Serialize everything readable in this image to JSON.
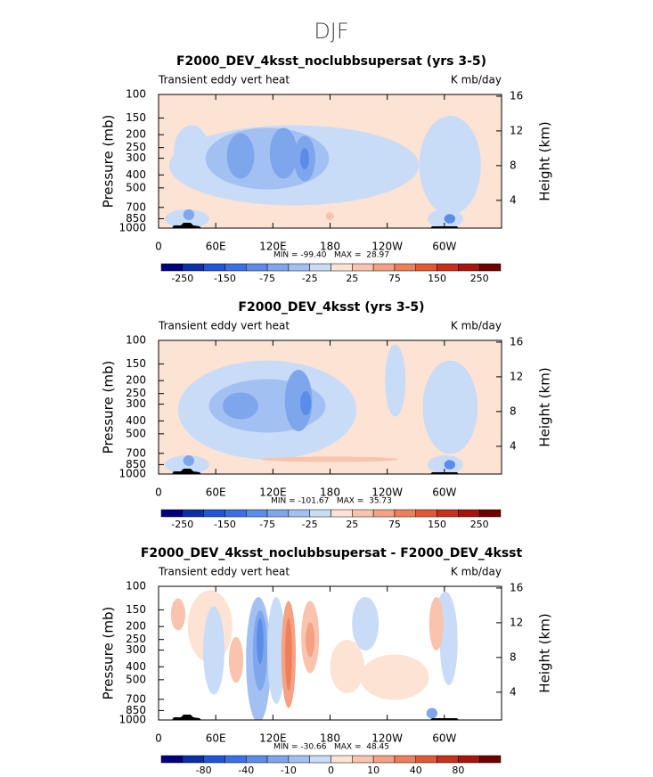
{
  "title": "DJF",
  "chart_data": [
    {
      "type": "contour",
      "title": "F2000_DEV_4ksst_noclubbsupersat (yrs 3-5)",
      "left_label": "Transient eddy vert heat",
      "right_label": "K mb/day",
      "y_label": "Pressure (mb)",
      "y2_label": "Height (km)",
      "xlim": [
        0,
        360
      ],
      "xticks": [
        0,
        {
          "value": 60,
          "label": "60E"
        },
        {
          "value": 120,
          "label": "120E"
        },
        180,
        {
          "value": 240,
          "label": "120W"
        },
        {
          "value": 300,
          "label": "60W"
        }
      ],
      "ylim": [
        1000,
        100
      ],
      "log_y": true,
      "yticks": [
        100,
        150,
        200,
        250,
        300,
        400,
        500,
        700,
        850,
        1000
      ],
      "y2lim": [
        0.8,
        16.2
      ],
      "y2ticks": [
        4,
        8,
        12,
        16
      ],
      "stats": "MIN = -99.40   MAX =  28.97",
      "colorbar": {
        "colors": [
          "#00007f",
          "#0a2fa8",
          "#1f55d6",
          "#3a6fe6",
          "#5b8ce8",
          "#7ea6ec",
          "#a3c0f2",
          "#c8dcf8",
          "#fde3d3",
          "#f9c3ad",
          "#f4a283",
          "#ee7f5b",
          "#e35834",
          "#c9301a",
          "#a7150c",
          "#700000"
        ],
        "levels": [
          -250,
          null,
          -150,
          null,
          -75,
          null,
          -25,
          null,
          25,
          null,
          75,
          null,
          150,
          null,
          250
        ]
      }
    },
    {
      "type": "contour",
      "title": "F2000_DEV_4ksst (yrs 3-5)",
      "left_label": "Transient eddy vert heat",
      "right_label": "K mb/day",
      "y_label": "Pressure (mb)",
      "y2_label": "Height (km)",
      "xlim": [
        0,
        360
      ],
      "xticks": [
        0,
        {
          "value": 60,
          "label": "60E"
        },
        {
          "value": 120,
          "label": "120E"
        },
        180,
        {
          "value": 240,
          "label": "120W"
        },
        {
          "value": 300,
          "label": "60W"
        }
      ],
      "ylim": [
        1000,
        100
      ],
      "log_y": true,
      "yticks": [
        100,
        150,
        200,
        250,
        300,
        400,
        500,
        700,
        850,
        1000
      ],
      "y2lim": [
        0.8,
        16.2
      ],
      "y2ticks": [
        4,
        8,
        12,
        16
      ],
      "stats": "MIN = -101.67   MAX =  35.73",
      "colorbar": {
        "colors": [
          "#00007f",
          "#0a2fa8",
          "#1f55d6",
          "#3a6fe6",
          "#5b8ce8",
          "#7ea6ec",
          "#a3c0f2",
          "#c8dcf8",
          "#fde3d3",
          "#f9c3ad",
          "#f4a283",
          "#ee7f5b",
          "#e35834",
          "#c9301a",
          "#a7150c",
          "#700000"
        ],
        "levels": [
          -250,
          null,
          -150,
          null,
          -75,
          null,
          -25,
          null,
          25,
          null,
          75,
          null,
          150,
          null,
          250
        ]
      }
    },
    {
      "type": "contour",
      "title": "F2000_DEV_4ksst_noclubbsupersat - F2000_DEV_4ksst",
      "left_label": "Transient eddy vert heat",
      "right_label": "K mb/day",
      "y_label": "Pressure (mb)",
      "y2_label": "Height (km)",
      "xlim": [
        0,
        360
      ],
      "xticks": [
        0,
        {
          "value": 60,
          "label": "60E"
        },
        {
          "value": 120,
          "label": "120E"
        },
        180,
        {
          "value": 240,
          "label": "120W"
        },
        {
          "value": 300,
          "label": "60W"
        }
      ],
      "ylim": [
        1000,
        100
      ],
      "log_y": true,
      "yticks": [
        100,
        150,
        200,
        250,
        300,
        400,
        500,
        700,
        850,
        1000
      ],
      "y2lim": [
        0.8,
        16.2
      ],
      "y2ticks": [
        4,
        8,
        12,
        16
      ],
      "stats": "MIN = -30.66   MAX =  48.45",
      "colorbar": {
        "colors": [
          "#00007f",
          "#0a2fa8",
          "#1f55d6",
          "#3a6fe6",
          "#5b8ce8",
          "#7ea6ec",
          "#a3c0f2",
          "#c8dcf8",
          "#fde3d3",
          "#f9c3ad",
          "#f4a283",
          "#ee7f5b",
          "#e35834",
          "#c9301a",
          "#a7150c",
          "#700000"
        ],
        "levels": [
          null,
          -80,
          null,
          -40,
          null,
          -10,
          null,
          0,
          null,
          10,
          null,
          40,
          null,
          80,
          null
        ]
      }
    }
  ]
}
